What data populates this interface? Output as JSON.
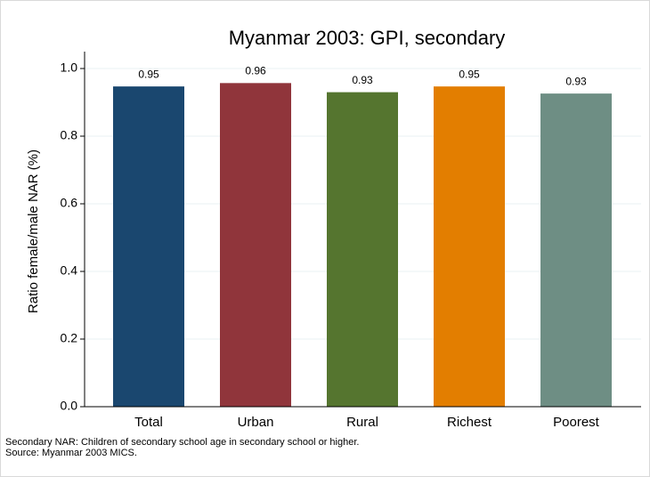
{
  "chart_data": {
    "type": "bar",
    "title": "Myanmar 2003: GPI, secondary",
    "y_label": "Ratio female/male NAR (%)",
    "categories": [
      "Total",
      "Urban",
      "Rural",
      "Richest",
      "Poorest"
    ],
    "values": [
      0.947,
      0.957,
      0.93,
      0.947,
      0.926
    ],
    "value_labels": [
      "0.95",
      "0.96",
      "0.93",
      "0.95",
      "0.93"
    ],
    "colors": [
      "#1a476f",
      "#90353b",
      "#55752f",
      "#e37e00",
      "#6e8e84"
    ],
    "ylim": [
      0,
      1.05
    ],
    "yticks": [
      {
        "value": 0,
        "label": "0.0"
      },
      {
        "value": 0.2,
        "label": "0.2"
      },
      {
        "value": 0.4,
        "label": "0.4"
      },
      {
        "value": 0.6,
        "label": "0.6"
      },
      {
        "value": 0.8,
        "label": "0.8"
      },
      {
        "value": 1,
        "label": "1.0"
      }
    ],
    "grid": true,
    "notes": [
      "Secondary NAR: Children of secondary school age in secondary school or higher.",
      "Source: Myanmar 2003 MICS."
    ]
  }
}
